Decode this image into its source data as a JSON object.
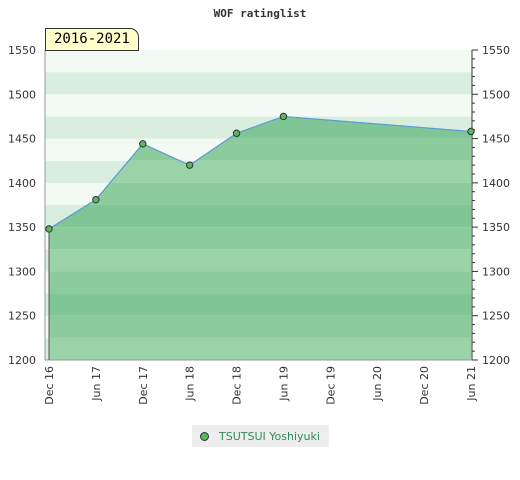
{
  "chart_data": {
    "type": "area",
    "title": "WOF ratinglist",
    "period": "2016-2021",
    "x_ticks": [
      "Dec 16",
      "Jun 17",
      "Dec 17",
      "Jun 18",
      "Dec 18",
      "Jun 19",
      "Dec 19",
      "Jun 20",
      "Dec 20",
      "Jun 21"
    ],
    "y_ticks": [
      1200,
      1250,
      1300,
      1350,
      1400,
      1450,
      1500,
      1550
    ],
    "ylim": [
      1200,
      1550
    ],
    "grid": true,
    "legend_position": "bottom",
    "series": [
      {
        "name": "TSUTSUI Yoshiyuki",
        "color": "#5cb85c",
        "points": [
          {
            "x": "Dec 16",
            "y": 1348
          },
          {
            "x": "Jun 17",
            "y": 1381
          },
          {
            "x": "Dec 17",
            "y": 1444
          },
          {
            "x": "Jun 18",
            "y": 1420
          },
          {
            "x": "Dec 18",
            "y": 1456
          },
          {
            "x": "Jun 19",
            "y": 1475
          },
          {
            "x": "Jun 21",
            "y": 1458
          }
        ]
      }
    ]
  }
}
